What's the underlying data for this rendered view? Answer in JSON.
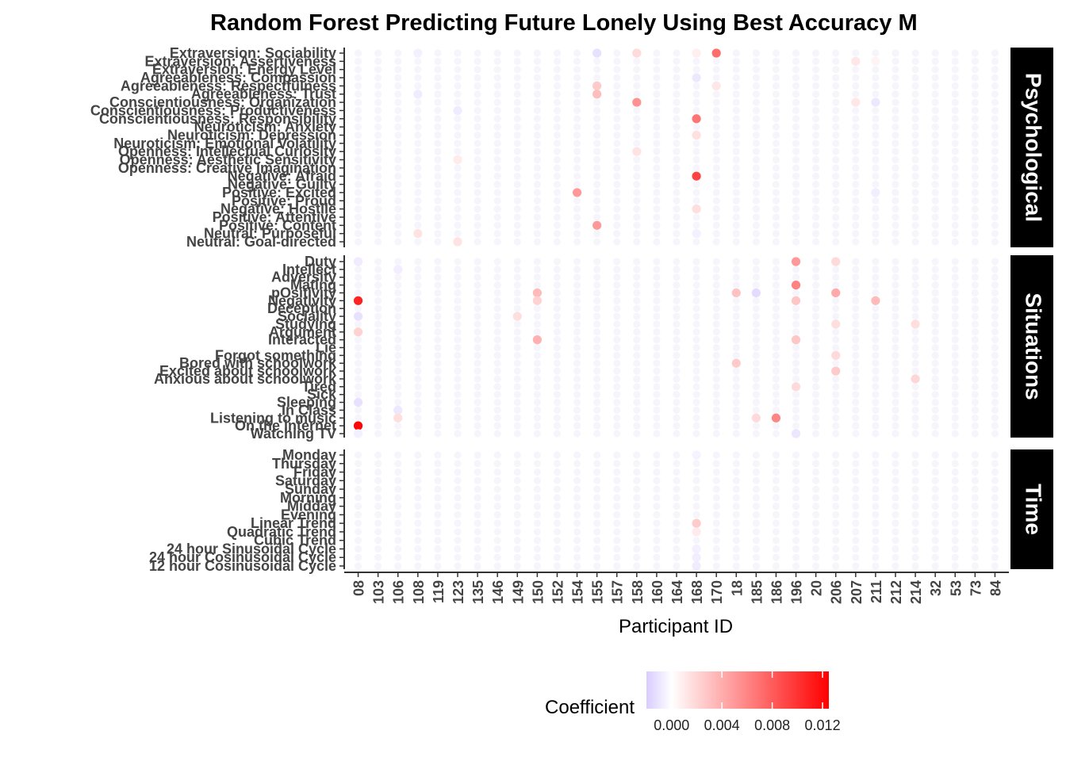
{
  "chart_data": {
    "type": "scatter",
    "title": "Random Forest Predicting Future Lonely Using Best Accuracy M",
    "xlabel": "Participant ID",
    "ylabel": "",
    "legend": {
      "title": "Coefficient",
      "position": "bottom",
      "ticks": [
        "0.000",
        "0.004",
        "0.008",
        "0.012"
      ],
      "range": [
        -0.002,
        0.0125
      ]
    },
    "colors": {
      "low": "#d9ccff",
      "mid": "#ffffff",
      "high": "#ff0000",
      "strip_bg": "#000000",
      "axis": "#333333"
    },
    "participants": [
      "08",
      "103",
      "106",
      "108",
      "119",
      "123",
      "135",
      "146",
      "149",
      "150",
      "152",
      "154",
      "155",
      "157",
      "158",
      "160",
      "164",
      "168",
      "170",
      "18",
      "185",
      "186",
      "196",
      "20",
      "206",
      "207",
      "211",
      "212",
      "214",
      "32",
      "53",
      "73",
      "84"
    ],
    "facets": [
      {
        "name": "Psychological",
        "features": [
          "Extraversion: Sociability",
          "Extraversion: Assertiveness",
          "Extraversion: Energy Level",
          "Agreeableness: Compassion",
          "Agreeableness: Respectfulness",
          "Agreeableness: Trust",
          "Conscientiousness: Organization",
          "Conscientiousness: Productiveness",
          "Conscientiousness: Responsibility",
          "Neuroticism: Anxiety",
          "Neuroticism: Depression",
          "Neuroticism: Emotional Volatility",
          "Openness: Intellectual Curiosity",
          "Openness: Aesthetic Sensitivity",
          "Openness: Creative Imagination",
          "Negative: Afraid",
          "Negative: Guilty",
          "Positive: Excited",
          "Positive: Proud",
          "Negative: Hostile",
          "Positive: Attentive",
          "Positive: Content",
          "Neutral: Purposeful",
          "Neutral: Goal-directed"
        ],
        "points": [
          {
            "participant": "108",
            "feature": "Extraversion: Sociability",
            "value": -0.0006
          },
          {
            "participant": "155",
            "feature": "Extraversion: Sociability",
            "value": -0.0012
          },
          {
            "participant": "158",
            "feature": "Extraversion: Sociability",
            "value": 0.0018
          },
          {
            "participant": "168",
            "feature": "Extraversion: Sociability",
            "value": 0.0008
          },
          {
            "participant": "170",
            "feature": "Extraversion: Sociability",
            "value": 0.0072
          },
          {
            "participant": "207",
            "feature": "Extraversion: Assertiveness",
            "value": 0.0012
          },
          {
            "participant": "211",
            "feature": "Extraversion: Assertiveness",
            "value": 0.0006
          },
          {
            "participant": "168",
            "feature": "Agreeableness: Compassion",
            "value": -0.0009
          },
          {
            "participant": "155",
            "feature": "Agreeableness: Respectfulness",
            "value": 0.0026
          },
          {
            "participant": "170",
            "feature": "Agreeableness: Respectfulness",
            "value": 0.0012
          },
          {
            "participant": "155",
            "feature": "Agreeableness: Trust",
            "value": 0.0032
          },
          {
            "participant": "108",
            "feature": "Agreeableness: Trust",
            "value": -0.0008
          },
          {
            "participant": "158",
            "feature": "Conscientiousness: Organization",
            "value": 0.0054
          },
          {
            "participant": "207",
            "feature": "Conscientiousness: Organization",
            "value": 0.0012
          },
          {
            "participant": "211",
            "feature": "Conscientiousness: Organization",
            "value": -0.0009
          },
          {
            "participant": "123",
            "feature": "Conscientiousness: Productiveness",
            "value": -0.0008
          },
          {
            "participant": "168",
            "feature": "Conscientiousness: Responsibility",
            "value": 0.0068
          },
          {
            "participant": "168",
            "feature": "Neuroticism: Depression",
            "value": 0.0015
          },
          {
            "participant": "158",
            "feature": "Openness: Intellectual Curiosity",
            "value": 0.0014
          },
          {
            "participant": "123",
            "feature": "Openness: Aesthetic Sensitivity",
            "value": 0.001
          },
          {
            "participant": "168",
            "feature": "Negative: Afraid",
            "value": 0.0092
          },
          {
            "participant": "154",
            "feature": "Positive: Excited",
            "value": 0.005
          },
          {
            "participant": "211",
            "feature": "Positive: Excited",
            "value": -0.0007
          },
          {
            "participant": "168",
            "feature": "Negative: Hostile",
            "value": 0.0016
          },
          {
            "participant": "155",
            "feature": "Positive: Content",
            "value": 0.005
          },
          {
            "participant": "108",
            "feature": "Neutral: Purposeful",
            "value": 0.0014
          },
          {
            "participant": "123",
            "feature": "Neutral: Goal-directed",
            "value": 0.0014
          },
          {
            "participant": "168",
            "feature": "Neutral: Purposeful",
            "value": -0.0006
          }
        ]
      },
      {
        "name": "Situations",
        "features": [
          "Duty",
          "Intellect",
          "Adversity",
          "Mating",
          "pOsitivity",
          "Negativity",
          "Deception",
          "Sociality",
          "Studying",
          "Argument",
          "Interacted",
          "Lie",
          "Forgot something",
          "Bored with schoolwork",
          "Excited about schoolwork",
          "Anxious about schoolwork",
          "Tired",
          "Sick",
          "Sleeping",
          "In Class",
          "Listening to music",
          "On the internet",
          "Watching TV"
        ],
        "points": [
          {
            "participant": "08",
            "feature": "Duty",
            "value": -0.0008
          },
          {
            "participant": "196",
            "feature": "Duty",
            "value": 0.005
          },
          {
            "participant": "206",
            "feature": "Duty",
            "value": 0.0018
          },
          {
            "participant": "106",
            "feature": "Intellect",
            "value": -0.0007
          },
          {
            "participant": "196",
            "feature": "Mating",
            "value": 0.0062
          },
          {
            "participant": "150",
            "feature": "pOsitivity",
            "value": 0.0034
          },
          {
            "participant": "18",
            "feature": "pOsitivity",
            "value": 0.003
          },
          {
            "participant": "185",
            "feature": "pOsitivity",
            "value": -0.0014
          },
          {
            "participant": "206",
            "feature": "pOsitivity",
            "value": 0.0042
          },
          {
            "participant": "08",
            "feature": "Negativity",
            "value": 0.0108
          },
          {
            "participant": "150",
            "feature": "Negativity",
            "value": 0.0022
          },
          {
            "participant": "196",
            "feature": "Negativity",
            "value": 0.0028
          },
          {
            "participant": "211",
            "feature": "Negativity",
            "value": 0.0034
          },
          {
            "participant": "08",
            "feature": "Sociality",
            "value": -0.0012
          },
          {
            "participant": "149",
            "feature": "Sociality",
            "value": 0.0016
          },
          {
            "participant": "206",
            "feature": "Studying",
            "value": 0.0016
          },
          {
            "participant": "214",
            "feature": "Studying",
            "value": 0.0016
          },
          {
            "participant": "08",
            "feature": "Argument",
            "value": 0.0022
          },
          {
            "participant": "150",
            "feature": "Interacted",
            "value": 0.0038
          },
          {
            "participant": "196",
            "feature": "Interacted",
            "value": 0.0028
          },
          {
            "participant": "206",
            "feature": "Forgot something",
            "value": 0.0018
          },
          {
            "participant": "18",
            "feature": "Bored with schoolwork",
            "value": 0.0026
          },
          {
            "participant": "206",
            "feature": "Excited about schoolwork",
            "value": 0.0026
          },
          {
            "participant": "214",
            "feature": "Anxious about schoolwork",
            "value": 0.002
          },
          {
            "participant": "196",
            "feature": "Tired",
            "value": 0.0018
          },
          {
            "participant": "08",
            "feature": "Sleeping",
            "value": -0.0012
          },
          {
            "participant": "106",
            "feature": "In Class",
            "value": -0.0009
          },
          {
            "participant": "106",
            "feature": "Listening to music",
            "value": 0.0016
          },
          {
            "participant": "185",
            "feature": "Listening to music",
            "value": 0.0018
          },
          {
            "participant": "186",
            "feature": "Listening to music",
            "value": 0.006
          },
          {
            "participant": "08",
            "feature": "On the internet",
            "value": 0.0122
          },
          {
            "participant": "08",
            "feature": "Watching TV",
            "value": -0.0006
          },
          {
            "participant": "196",
            "feature": "Watching TV",
            "value": -0.001
          }
        ]
      },
      {
        "name": "Time",
        "features": [
          "Monday",
          "Thursday",
          "Friday",
          "Saturday",
          "Sunday",
          "Morning",
          "Midday",
          "Evening",
          "Linear Trend",
          "Quadratic Trend",
          "Cubic Trend",
          "24 hour Sinusoidal Cycle",
          "24 hour Cosinusoidal Cycle",
          "12 hour Cosinusoidal Cycle"
        ],
        "points": [
          {
            "participant": "168",
            "feature": "Monday",
            "value": -0.0005
          },
          {
            "participant": "168",
            "feature": "Linear Trend",
            "value": 0.0026
          },
          {
            "participant": "168",
            "feature": "Quadratic Trend",
            "value": 0.001
          },
          {
            "participant": "168",
            "feature": "24 hour Sinusoidal Cycle",
            "value": -0.0006
          },
          {
            "participant": "168",
            "feature": "24 hour Cosinusoidal Cycle",
            "value": -0.0007
          },
          {
            "participant": "168",
            "feature": "12 hour Cosinusoidal Cycle",
            "value": -0.0008
          }
        ]
      }
    ]
  }
}
